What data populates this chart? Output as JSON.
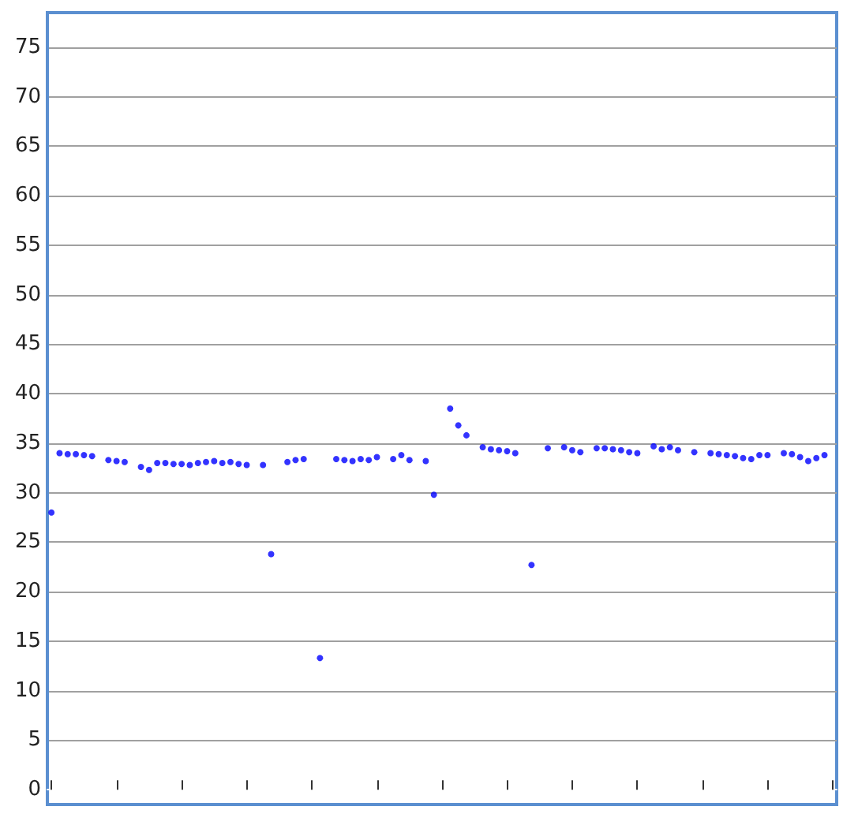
{
  "chart_data": {
    "type": "scatter",
    "categories": [
      null,
      null,
      null,
      null,
      null,
      null,
      null,
      null,
      null,
      null,
      null,
      null,
      null,
      null,
      null,
      null,
      null,
      null,
      null,
      null,
      null,
      null,
      null,
      null,
      null,
      null,
      null,
      null,
      null,
      null,
      null,
      null,
      null,
      null,
      null,
      null,
      null,
      null,
      null,
      null,
      null,
      null,
      null,
      null,
      null,
      null,
      null,
      null,
      null,
      null,
      null,
      null,
      null,
      null,
      null,
      null,
      null,
      null,
      null,
      null,
      null,
      null,
      null,
      null,
      null,
      null,
      null,
      null,
      null,
      null,
      null,
      null,
      null,
      null,
      null,
      null,
      null,
      null,
      null,
      null,
      null,
      null,
      null,
      null,
      null,
      null,
      null,
      null,
      null,
      null,
      null,
      null,
      null,
      null,
      null,
      null,
      null
    ],
    "series": [
      {
        "color": "#0000ff",
        "values": [
          28,
          34.0,
          33.9,
          33.9,
          33.8,
          33.7,
          null,
          33.3,
          33.2,
          33.1,
          null,
          32.6,
          32.3,
          33.0,
          33.0,
          32.9,
          32.9,
          32.8,
          33.0,
          33.1,
          33.2,
          33.0,
          33.1,
          32.9,
          32.8,
          null,
          32.8,
          23.8,
          null,
          33.1,
          33.3,
          33.4,
          null,
          13.3,
          null,
          33.4,
          33.3,
          33.2,
          33.4,
          33.3,
          33.6,
          null,
          33.4,
          33.8,
          33.3,
          null,
          33.2,
          29.8,
          null,
          38.5,
          36.8,
          35.8,
          null,
          34.6,
          34.4,
          34.3,
          34.2,
          34.0,
          null,
          22.7,
          null,
          34.5,
          null,
          34.6,
          34.3,
          34.1,
          null,
          34.5,
          34.5,
          34.4,
          34.3,
          34.1,
          34.0,
          null,
          34.7,
          34.4,
          34.6,
          34.3,
          null,
          34.1,
          null,
          34.0,
          33.9,
          33.8,
          33.7,
          33.5,
          33.4,
          33.8,
          33.8,
          null,
          34.0,
          33.9,
          33.6,
          33.2,
          33.5,
          33.8,
          null
        ]
      }
    ],
    "ylim": [
      -1.5,
      78.5
    ],
    "yticks": [
      0,
      5,
      10,
      15,
      20,
      25,
      30,
      35,
      40,
      45,
      50,
      55,
      60,
      65,
      70,
      75
    ],
    "grid": "y",
    "tick_labels": "y",
    "marker": "circle"
  }
}
